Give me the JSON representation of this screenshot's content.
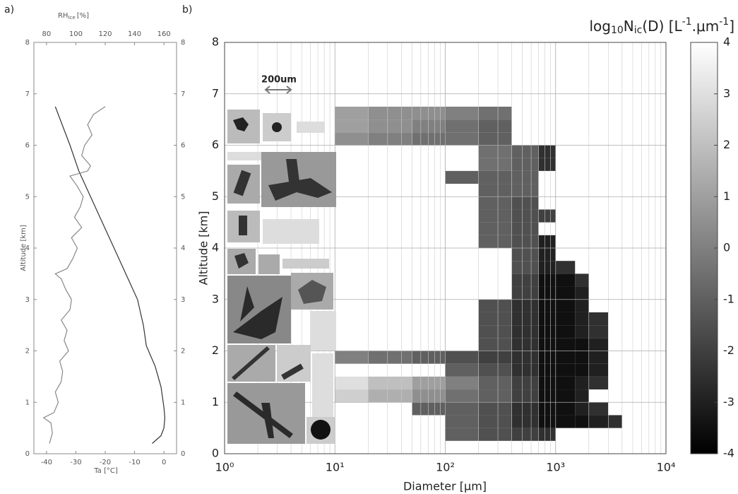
{
  "chart_data": [
    {
      "type": "line",
      "panel": "a)",
      "xlabel": "Ta [°C]",
      "x2label": [
        "RH",
        "Ice",
        "[%]"
      ],
      "ylabel": "Altitude [km]",
      "xlim": [
        -44.3,
        4.3
      ],
      "xticks": [
        -40,
        -30,
        -20,
        -10,
        0
      ],
      "x2lim": [
        71.4,
        168.6
      ],
      "x2ticks": [
        80,
        100,
        120,
        140,
        160
      ],
      "ylim": [
        0,
        8
      ],
      "yticks": [
        0,
        1,
        2,
        3,
        4,
        5,
        6,
        7,
        8
      ],
      "series": [
        {
          "color": "#333333",
          "x": [
            -4,
            -1,
            0,
            0.3,
            0,
            -1,
            -3,
            -6,
            -7,
            -9,
            -13,
            -17,
            -21,
            -25,
            -29,
            -32,
            -37
          ],
          "y": [
            0.2,
            0.35,
            0.5,
            0.7,
            0.9,
            1.3,
            1.7,
            2.1,
            2.5,
            3,
            3.5,
            4,
            4.5,
            5,
            5.5,
            6,
            6.75
          ]
        },
        {
          "color": "#888888",
          "axis": "x2",
          "x": [
            82,
            84,
            83,
            78,
            85,
            88,
            86,
            90,
            91,
            89,
            95,
            92,
            94,
            90,
            96,
            97,
            93,
            90,
            86,
            94,
            98,
            101,
            97,
            104,
            99,
            103,
            105,
            101,
            96,
            108,
            110,
            104,
            106,
            111,
            108,
            112,
            120
          ],
          "y": [
            0.2,
            0.4,
            0.6,
            0.7,
            0.8,
            1.0,
            1.2,
            1.4,
            1.6,
            1.8,
            2.0,
            2.2,
            2.4,
            2.6,
            2.8,
            3.0,
            3.2,
            3.4,
            3.5,
            3.6,
            3.8,
            4.0,
            4.2,
            4.4,
            4.6,
            4.8,
            5.0,
            5.2,
            5.4,
            5.5,
            5.6,
            5.8,
            6.0,
            6.2,
            6.4,
            6.6,
            6.75
          ]
        }
      ]
    },
    {
      "type": "heatmap",
      "panel": "b)",
      "log_x": true,
      "xlabel": "Diameter [μm]",
      "ylabel": "Altitude [km]",
      "annotation": "200um",
      "xlim": [
        1,
        10000
      ],
      "xticks": [
        {
          "value": 1,
          "label": "10⁰"
        },
        {
          "value": 10,
          "label": "10¹"
        },
        {
          "value": 100,
          "label": "10²"
        },
        {
          "value": 1000,
          "label": "10³"
        },
        {
          "value": 10000,
          "label": "10⁴"
        }
      ],
      "xgrid_minor": [
        2,
        3,
        4,
        5,
        6,
        7,
        8,
        9,
        20,
        30,
        40,
        50,
        60,
        70,
        80,
        90,
        200,
        300,
        400,
        500,
        600,
        700,
        800,
        900,
        2000,
        3000,
        4000,
        5000,
        6000,
        7000,
        8000,
        9000
      ],
      "ylim": [
        0,
        8
      ],
      "yticks": [
        0,
        1,
        2,
        3,
        4,
        5,
        6,
        7,
        8
      ],
      "x_edges": [
        10,
        20,
        50,
        100,
        200,
        400,
        700,
        1000,
        1500,
        2000,
        3000,
        4000
      ],
      "y_edges": [
        0.25,
        0.5,
        0.75,
        1,
        1.25,
        1.5,
        1.75,
        2,
        2.25,
        2.5,
        2.75,
        3,
        3.25,
        3.5,
        3.75,
        4,
        4.25,
        4.5,
        4.75,
        5,
        5.25,
        5.5,
        5.75,
        6,
        6.25,
        6.5,
        6.75
      ],
      "z": [
        [
          null,
          null,
          null,
          -1,
          -1.5,
          -2,
          -2.5,
          null,
          null,
          null,
          null
        ],
        [
          null,
          null,
          null,
          -1,
          -1.5,
          -2.5,
          -3.5,
          -3.5,
          -3.5,
          -3,
          -2.5
        ],
        [
          null,
          null,
          -1,
          -1,
          -1.5,
          -2.5,
          -3.5,
          -3.5,
          -3,
          -2.5,
          null
        ],
        [
          2.5,
          1.5,
          0.5,
          -0.5,
          -1,
          -2,
          -3.5,
          -3.5,
          -3,
          null,
          null
        ],
        [
          3,
          2,
          1,
          0,
          -1,
          -2,
          -3.5,
          -3.5,
          -3,
          -2.5,
          null
        ],
        [
          null,
          null,
          null,
          -1,
          -1.5,
          -2.5,
          -3.5,
          -3.5,
          -3.5,
          -3,
          null
        ],
        [
          0,
          -0.5,
          -1,
          -1.5,
          -2,
          -2.5,
          -3.5,
          -3.5,
          -3.5,
          -3,
          null
        ],
        [
          null,
          null,
          null,
          null,
          -1.5,
          -2.5,
          -3.5,
          -3.5,
          -3.5,
          -3,
          null
        ],
        [
          null,
          null,
          null,
          null,
          -1.5,
          -2.5,
          -3.5,
          -3.5,
          -3,
          -2.5,
          null
        ],
        [
          null,
          null,
          null,
          null,
          -1.5,
          -2.5,
          -3.5,
          -3.5,
          -3,
          -2.5,
          null
        ],
        [
          null,
          null,
          null,
          null,
          -1.5,
          -2.5,
          -3.5,
          -3.5,
          -3,
          null,
          null
        ],
        [
          null,
          null,
          null,
          null,
          null,
          -2,
          -3.5,
          -3.5,
          -3,
          null,
          null
        ],
        [
          null,
          null,
          null,
          null,
          null,
          -2,
          -3.5,
          -3.5,
          -2.5,
          null,
          null
        ],
        [
          null,
          null,
          null,
          null,
          null,
          -1.5,
          -3,
          -2.5,
          null,
          null,
          null
        ],
        [
          null,
          null,
          null,
          null,
          null,
          -1.5,
          -3,
          null,
          null,
          null,
          null
        ],
        [
          null,
          null,
          null,
          null,
          -1,
          -1.5,
          -3,
          null,
          null,
          null,
          null
        ],
        [
          null,
          null,
          null,
          null,
          -1,
          -1.5,
          null,
          null,
          null,
          null,
          null
        ],
        [
          null,
          null,
          null,
          null,
          -1,
          -1.5,
          -2,
          null,
          null,
          null,
          null
        ],
        [
          null,
          null,
          null,
          null,
          -1,
          -1.5,
          null,
          null,
          null,
          null,
          null
        ],
        [
          null,
          null,
          null,
          null,
          -1,
          -1,
          null,
          null,
          null,
          null,
          null
        ],
        [
          null,
          null,
          null,
          -1,
          -1,
          -1,
          null,
          null,
          null,
          null,
          null
        ],
        [
          null,
          null,
          null,
          null,
          -0.5,
          -1,
          -2.5,
          null,
          null,
          null,
          null
        ],
        [
          null,
          null,
          null,
          null,
          -0.5,
          -1,
          -2.5,
          null,
          null,
          null,
          null
        ],
        [
          0.5,
          0,
          -0.5,
          -0.5,
          -1,
          null,
          null,
          null,
          null,
          null,
          null
        ],
        [
          1,
          0.5,
          0,
          -0.5,
          -1,
          null,
          null,
          null,
          null,
          null,
          null
        ],
        [
          1,
          0.5,
          0.5,
          0,
          -0.5,
          null,
          null,
          null,
          null,
          null,
          null
        ]
      ],
      "colorbar": {
        "label": [
          "log",
          "10",
          "N",
          "ic",
          "(D) [L",
          "-1",
          ".μm",
          "-1",
          "]"
        ],
        "lim": [
          -4,
          4
        ],
        "ticks": [
          -4,
          -3,
          -2,
          -1,
          0,
          1,
          2,
          3,
          4
        ],
        "colors": [
          "#000000",
          "#ffffff"
        ]
      }
    }
  ]
}
